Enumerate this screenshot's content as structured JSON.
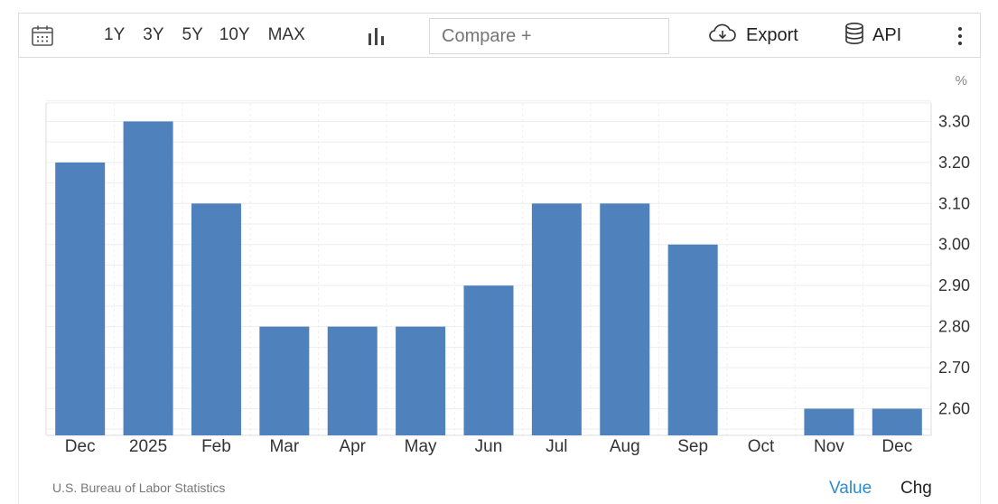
{
  "toolbar": {
    "ranges": [
      "1Y",
      "3Y",
      "5Y",
      "10Y",
      "MAX"
    ],
    "compare_placeholder": "Compare +",
    "export_label": "Export",
    "api_label": "API",
    "icons": [
      "calendar-icon",
      "bar-chart-icon",
      "cloud-download-icon",
      "database-icon",
      "more-vertical-icon"
    ]
  },
  "footer": {
    "source": "U.S. Bureau of Labor Statistics",
    "value_label": "Value",
    "chg_label": "Chg"
  },
  "colors": {
    "bar": "#4f81bd",
    "active_toggle": "#2e8bd6"
  },
  "chart_data": {
    "type": "bar",
    "unit_label": "%",
    "categories": [
      "Dec",
      "2025",
      "Feb",
      "Mar",
      "Apr",
      "May",
      "Jun",
      "Jul",
      "Aug",
      "Sep",
      "Oct",
      "Nov",
      "Dec"
    ],
    "values": [
      3.2,
      3.3,
      3.1,
      2.8,
      2.8,
      2.8,
      2.9,
      3.1,
      3.1,
      3.0,
      null,
      2.6,
      2.6
    ],
    "y_ticks": [
      "3.30",
      "3.20",
      "3.10",
      "3.00",
      "2.90",
      "2.80",
      "2.70",
      "2.60"
    ],
    "ylim": [
      2.535,
      3.345
    ],
    "grid": true,
    "y_axis_position": "right"
  }
}
